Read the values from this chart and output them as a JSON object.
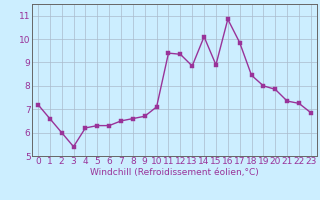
{
  "x": [
    0,
    1,
    2,
    3,
    4,
    5,
    6,
    7,
    8,
    9,
    10,
    11,
    12,
    13,
    14,
    15,
    16,
    17,
    18,
    19,
    20,
    21,
    22,
    23
  ],
  "y": [
    7.2,
    6.6,
    6.0,
    5.4,
    6.2,
    6.3,
    6.3,
    6.5,
    6.6,
    6.7,
    7.1,
    9.4,
    9.35,
    8.85,
    10.1,
    8.9,
    10.85,
    9.85,
    8.45,
    8.0,
    7.85,
    7.35,
    7.25,
    6.85
  ],
  "line_color": "#993399",
  "marker_color": "#993399",
  "bg_color": "#cceeff",
  "grid_color": "#aabbcc",
  "axis_color": "#993399",
  "xlabel": "Windchill (Refroidissement éolien,°C)",
  "xlim": [
    -0.5,
    23.5
  ],
  "ylim": [
    5,
    11.5
  ],
  "yticks": [
    5,
    6,
    7,
    8,
    9,
    10,
    11
  ],
  "xticks": [
    0,
    1,
    2,
    3,
    4,
    5,
    6,
    7,
    8,
    9,
    10,
    11,
    12,
    13,
    14,
    15,
    16,
    17,
    18,
    19,
    20,
    21,
    22,
    23
  ],
  "xlabel_fontsize": 6.5,
  "tick_fontsize": 6.5,
  "line_width": 1.0,
  "marker_size": 2.5
}
